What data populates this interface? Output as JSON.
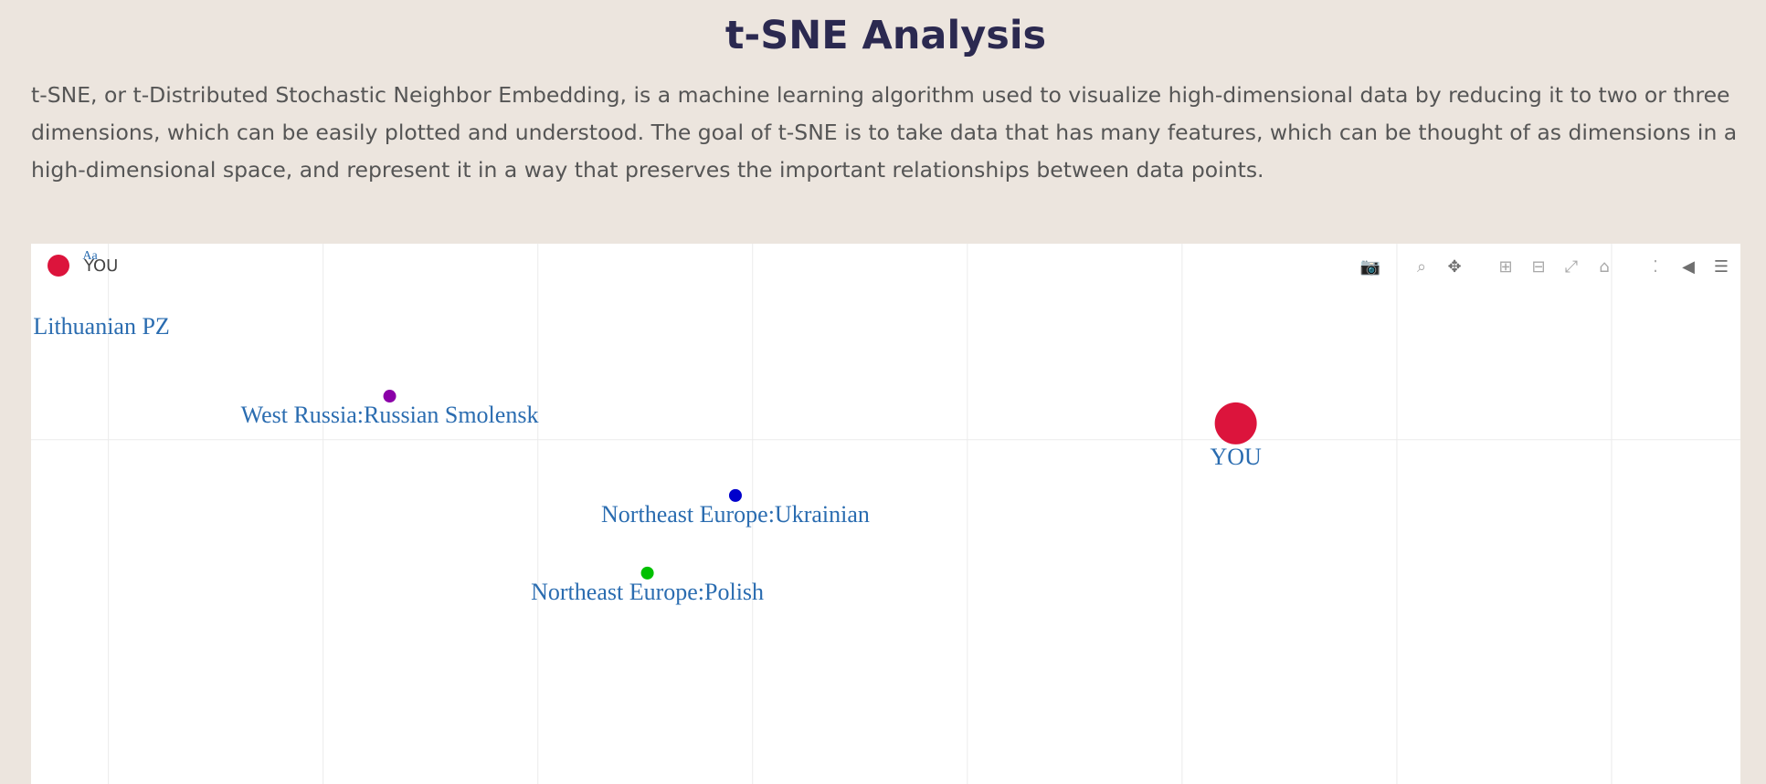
{
  "page": {
    "title": "t-SNE Analysis",
    "description": "t-SNE, or t-Distributed Stochastic Neighbor Embedding, is a machine learning algorithm used to visualize high-dimensional data by reducing it to two or three dimensions, which can be easily plotted and understood. The goal of t-SNE is to take data that has many features, which can be thought of as dimensions in a high-dimensional space, and represent it in a way that preserves the important relationships between data points."
  },
  "legend": {
    "label": "YOU",
    "color": "#dc143c"
  },
  "modebar": [
    {
      "name": "camera-icon",
      "glyph": "📷"
    },
    {
      "name": "zoom-icon",
      "glyph": "⌕"
    },
    {
      "name": "pan-icon",
      "glyph": "✥"
    },
    {
      "name": "zoom-in-icon",
      "glyph": "⊞"
    },
    {
      "name": "zoom-out-icon",
      "glyph": "⊟"
    },
    {
      "name": "autoscale-icon",
      "glyph": "⤢"
    },
    {
      "name": "reset-axes-icon",
      "glyph": "⌂"
    },
    {
      "name": "spike-lines-icon",
      "glyph": "⁚"
    },
    {
      "name": "hover-closest-icon",
      "glyph": "◀"
    },
    {
      "name": "hover-compare-icon",
      "glyph": "☰"
    }
  ],
  "chart_data": {
    "type": "scatter",
    "title": "",
    "xlabel": "",
    "ylabel": "",
    "xlim": [
      -0.36,
      7.6
    ],
    "ylim": [
      -2.53,
      1.44
    ],
    "grid": true,
    "legend_position": "top-left",
    "label_color": "#2a6cb0",
    "points": [
      {
        "label": "YOU",
        "x": 5.25,
        "y": 0.12,
        "color": "#dc143c",
        "size": "large"
      },
      {
        "label": "West Russia:Russian Smolensk",
        "x": 1.31,
        "y": 0.32,
        "color": "#8b00a8",
        "size": "small"
      },
      {
        "label": "Northeast Europe:Ukrainian",
        "x": 2.92,
        "y": -0.41,
        "color": "#0000cc",
        "size": "small"
      },
      {
        "label": "Northeast Europe:Polish",
        "x": 2.51,
        "y": -0.98,
        "color": "#00c000",
        "size": "small"
      },
      {
        "label": "Lithuanian PZ",
        "x": -0.35,
        "y": 0.83,
        "color": "#2a6cb0",
        "size": "none"
      },
      {
        "label": "Aa",
        "x": -0.12,
        "y": 1.38,
        "color": "#2a6cb0",
        "size": "none"
      }
    ]
  }
}
